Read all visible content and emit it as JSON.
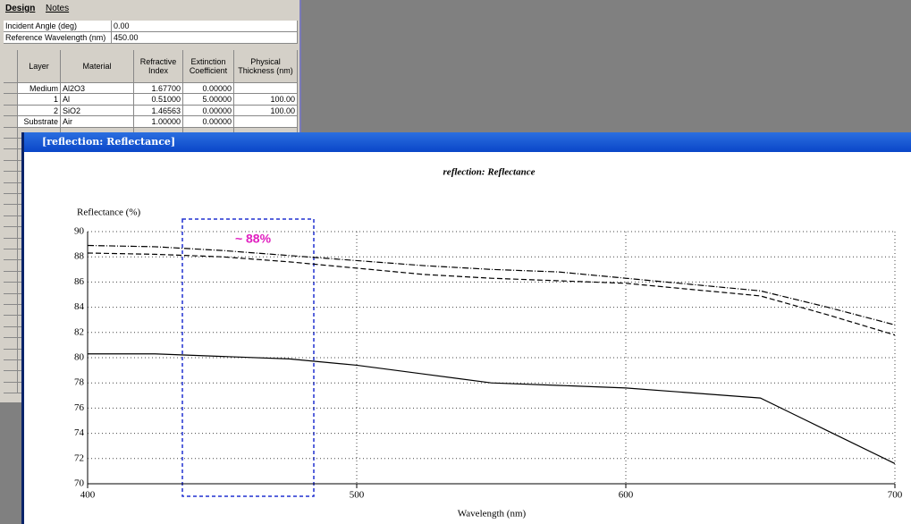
{
  "design_panel": {
    "tabs": [
      "Design",
      "Notes"
    ],
    "fields": [
      {
        "label": "Incident Angle (deg)",
        "value": "0.00"
      },
      {
        "label": "Reference Wavelength (nm)",
        "value": "450.00"
      }
    ],
    "table": {
      "headers": [
        "Layer",
        "Material",
        "Refractive Index",
        "Extinction Coefficient",
        "Physical Thickness (nm)"
      ],
      "rows": [
        [
          "Medium",
          "Al2O3",
          "1.67700",
          "0.00000"
        ],
        [
          "1",
          "Al",
          "0.51000",
          "5.00000",
          "100.00"
        ],
        [
          "2",
          "SiO2",
          "1.46563",
          "0.00000",
          "100.00"
        ],
        [
          "Substrate",
          "Air",
          "1.00000",
          "0.00000"
        ]
      ]
    }
  },
  "window": {
    "title": "[reflection: Reflectance]"
  },
  "chart_data": {
    "type": "line",
    "title": "reflection: Reflectance",
    "x_label": "Wavelength (nm)",
    "y_label": "Reflectance (%)",
    "annotation": {
      "text": "~ 88%",
      "color": "#e020c0"
    },
    "x": [
      400,
      425,
      450,
      475,
      500,
      525,
      550,
      575,
      600,
      625,
      650,
      675,
      700
    ],
    "series": [
      {
        "color": "#000000",
        "style": "dashdot",
        "values": [
          88.9,
          88.8,
          88.5,
          88.1,
          87.7,
          87.3,
          87.0,
          86.8,
          86.3,
          85.8,
          85.3,
          84.0,
          82.6
        ]
      },
      {
        "color": "#000000",
        "style": "dashed",
        "values": [
          88.3,
          88.2,
          88.0,
          87.6,
          87.1,
          86.6,
          86.3,
          86.1,
          85.9,
          85.4,
          84.9,
          83.4,
          81.8
        ]
      },
      {
        "color": "#000000",
        "style": "solid",
        "values": [
          80.3,
          80.3,
          80.1,
          79.9,
          79.4,
          78.7,
          78.0,
          77.8,
          77.6,
          77.2,
          76.8,
          74.2,
          71.6
        ]
      }
    ],
    "xlim": [
      400,
      700
    ],
    "xticks": [
      400,
      500,
      600,
      700
    ],
    "ylim": [
      70,
      90
    ],
    "yticks": [
      70,
      72,
      74,
      76,
      78,
      80,
      82,
      84,
      86,
      88,
      90
    ],
    "grid": true
  }
}
